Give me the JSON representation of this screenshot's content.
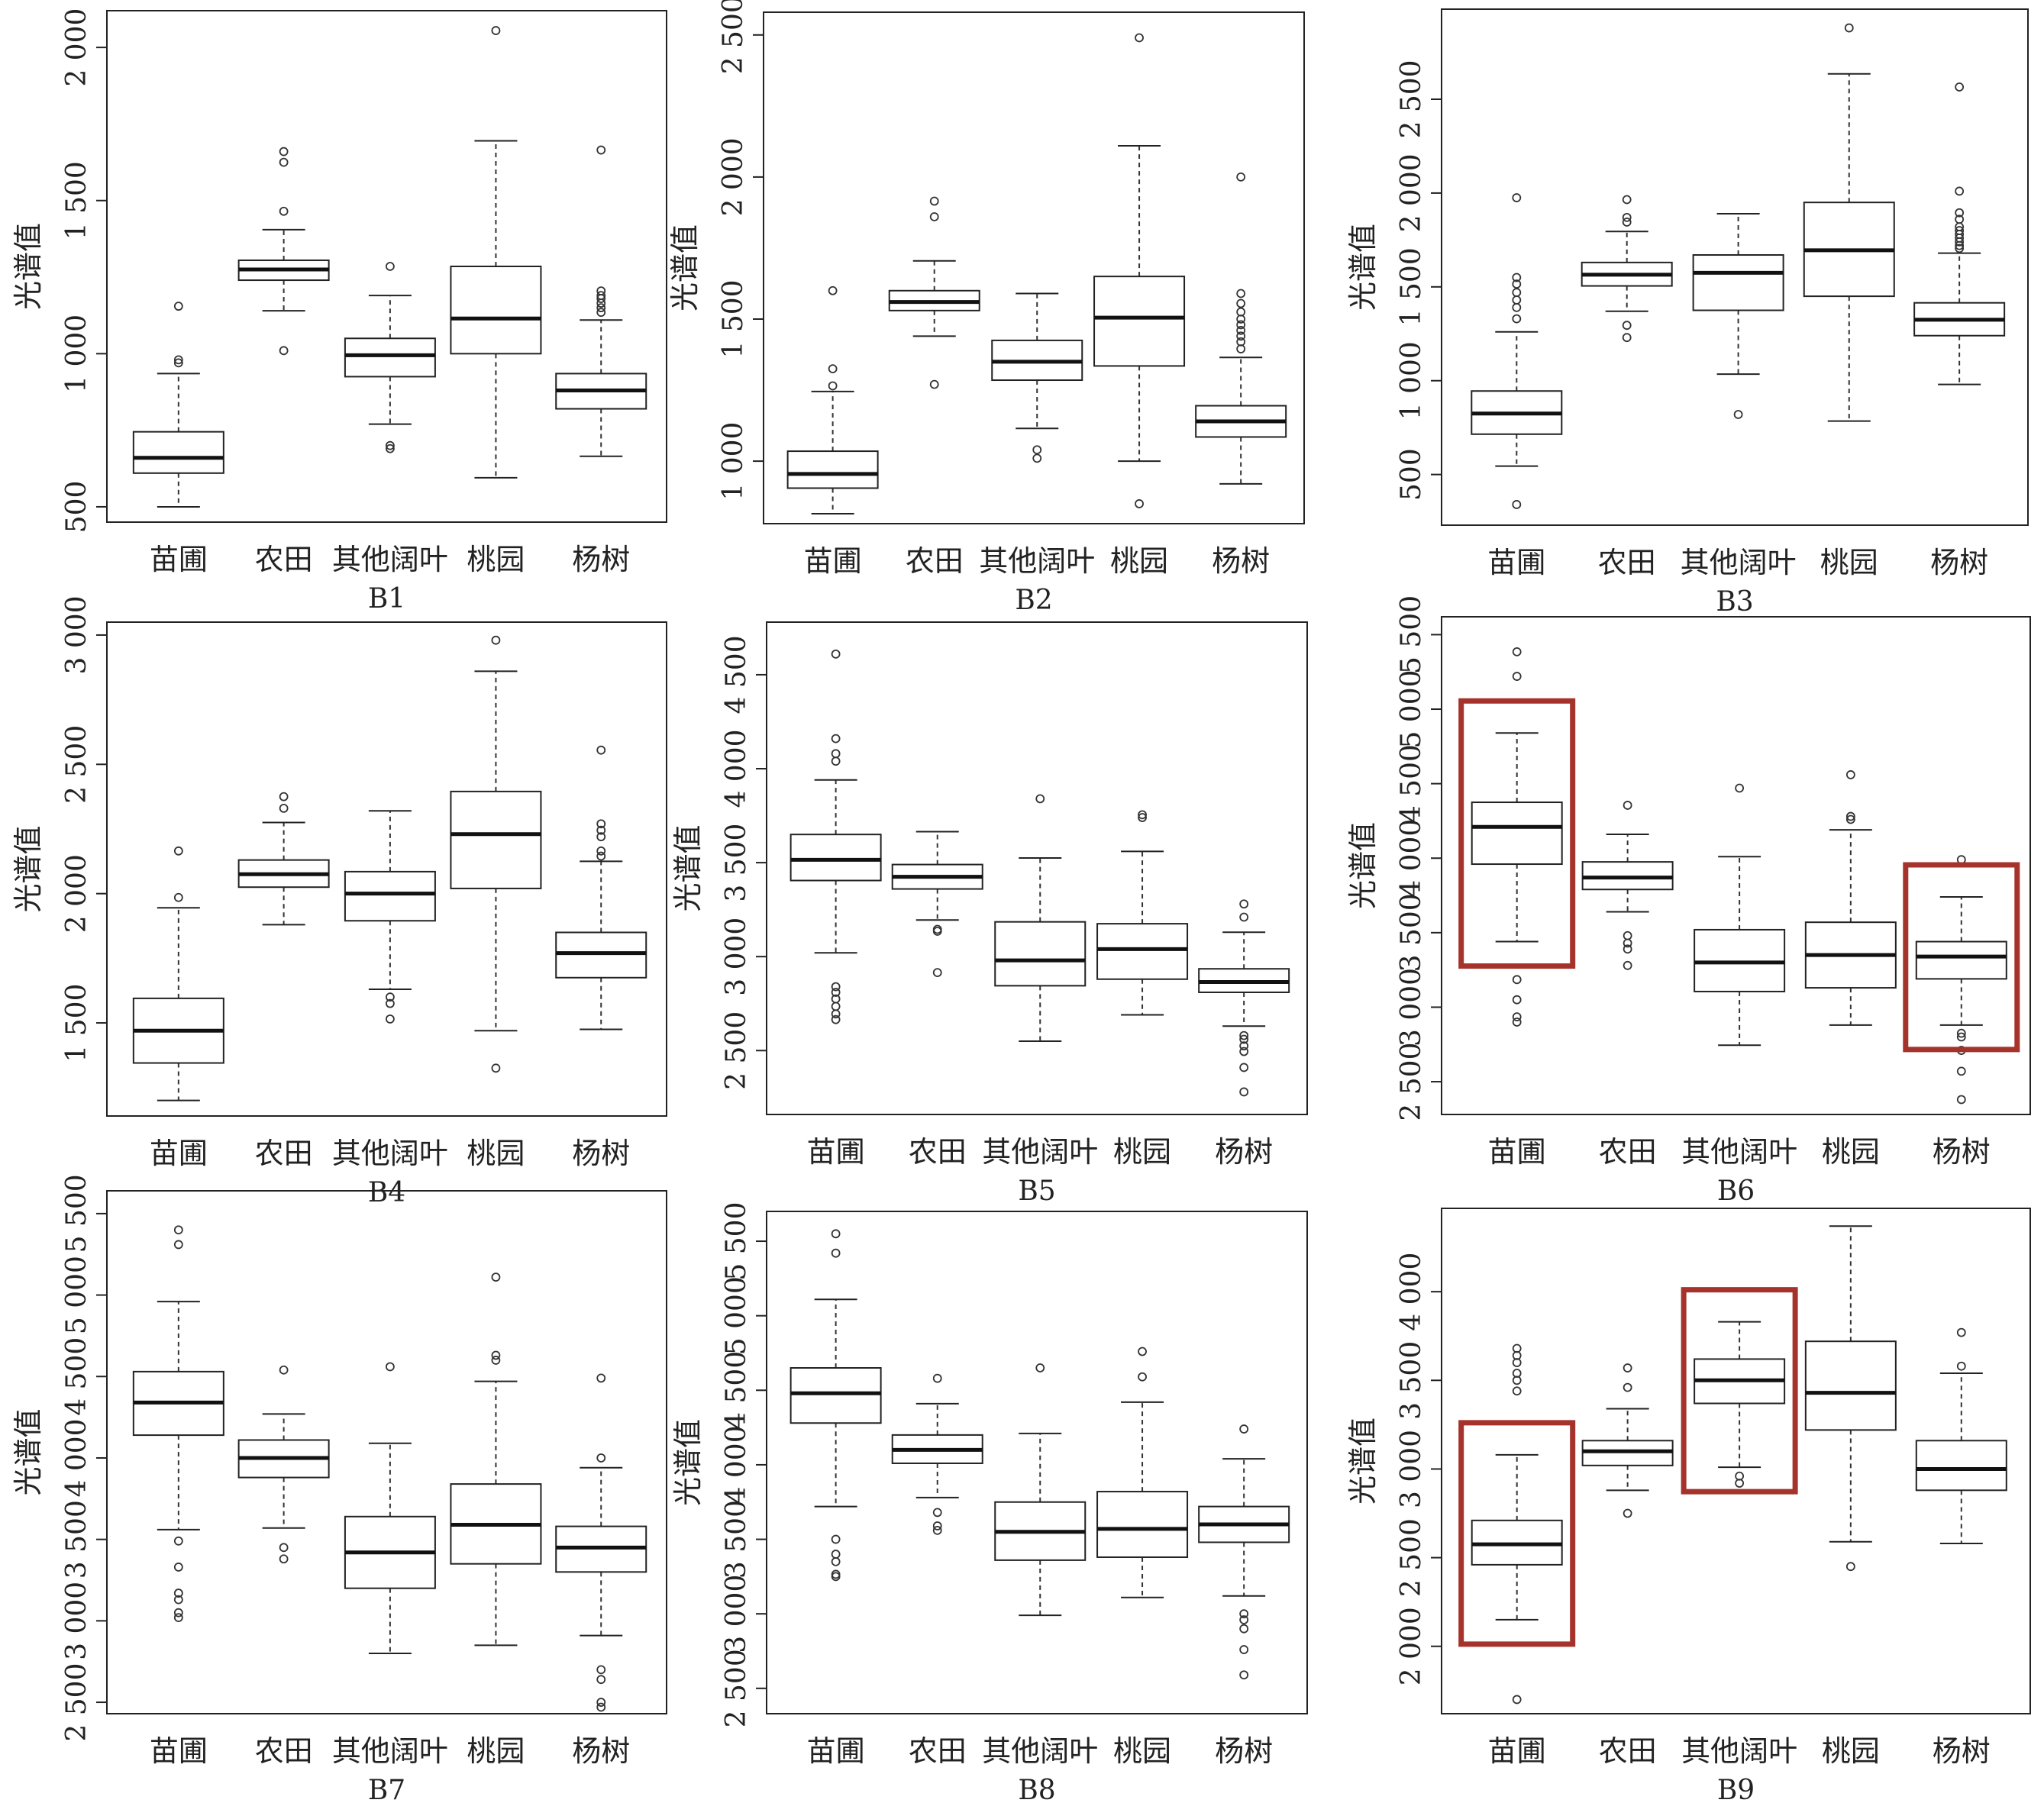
{
  "figure": {
    "highlight_color": "#a5332c",
    "ylabel": "光谱值"
  },
  "chart_data": [
    {
      "type": "box",
      "title": "B1",
      "ylabel": "光谱值",
      "ylim": [
        450,
        2120
      ],
      "yticks": [
        500,
        1000,
        1500,
        2000
      ],
      "ytick_labels": [
        "500",
        "1 000",
        "1 500",
        "2 000"
      ],
      "categories": [
        "苗圃",
        "农田",
        "其他阔叶",
        "桃园",
        "杨树"
      ],
      "boxes": [
        {
          "min": 500,
          "q1": 610,
          "median": 660,
          "q3": 745,
          "max": 935,
          "outliers": [
            970,
            980,
            1155
          ]
        },
        {
          "min": 1140,
          "q1": 1240,
          "median": 1275,
          "q3": 1305,
          "max": 1405,
          "outliers": [
            1010,
            1465,
            1625,
            1660
          ]
        },
        {
          "min": 770,
          "q1": 925,
          "median": 995,
          "q3": 1050,
          "max": 1190,
          "outliers": [
            690,
            700,
            1285
          ]
        },
        {
          "min": 595,
          "q1": 1000,
          "median": 1115,
          "q3": 1285,
          "max": 1695,
          "outliers": [
            2055
          ]
        },
        {
          "min": 665,
          "q1": 820,
          "median": 880,
          "q3": 935,
          "max": 1110,
          "outliers": [
            1135,
            1150,
            1165,
            1180,
            1190,
            1205,
            1665
          ]
        }
      ],
      "highlight": []
    },
    {
      "type": "box",
      "title": "B2",
      "ylabel": "光谱值",
      "ylim": [
        780,
        2580
      ],
      "yticks": [
        1000,
        1500,
        2000,
        2500
      ],
      "ytick_labels": [
        "1 000",
        "1 500",
        "2 000",
        "2 500"
      ],
      "categories": [
        "苗圃",
        "农田",
        "其他阔叶",
        "桃园",
        "杨树"
      ],
      "boxes": [
        {
          "min": 815,
          "q1": 905,
          "median": 955,
          "q3": 1035,
          "max": 1245,
          "outliers": [
            1265,
            1325,
            1600
          ]
        },
        {
          "min": 1440,
          "q1": 1530,
          "median": 1560,
          "q3": 1600,
          "max": 1705,
          "outliers": [
            1270,
            1860,
            1915
          ]
        },
        {
          "min": 1115,
          "q1": 1285,
          "median": 1350,
          "q3": 1425,
          "max": 1590,
          "outliers": [
            1010,
            1040
          ]
        },
        {
          "min": 1000,
          "q1": 1335,
          "median": 1505,
          "q3": 1650,
          "max": 2110,
          "outliers": [
            850,
            2490
          ]
        },
        {
          "min": 920,
          "q1": 1085,
          "median": 1140,
          "q3": 1195,
          "max": 1365,
          "outliers": [
            1395,
            1420,
            1440,
            1460,
            1480,
            1500,
            1525,
            1555,
            1590,
            2000
          ]
        }
      ],
      "highlight": []
    },
    {
      "type": "box",
      "title": "B3",
      "ylabel": "光谱值",
      "ylim": [
        230,
        2980
      ],
      "yticks": [
        500,
        1000,
        1500,
        2000,
        2500
      ],
      "ytick_labels": [
        "500",
        "1 000",
        "1 500",
        "2 000",
        "2 500"
      ],
      "categories": [
        "苗圃",
        "农田",
        "其他阔叶",
        "桃园",
        "杨树"
      ],
      "boxes": [
        {
          "min": 545,
          "q1": 715,
          "median": 825,
          "q3": 945,
          "max": 1260,
          "outliers": [
            340,
            1330,
            1390,
            1430,
            1470,
            1515,
            1550,
            1975
          ]
        },
        {
          "min": 1370,
          "q1": 1505,
          "median": 1565,
          "q3": 1630,
          "max": 1795,
          "outliers": [
            1230,
            1295,
            1845,
            1870,
            1965
          ]
        },
        {
          "min": 1035,
          "q1": 1375,
          "median": 1575,
          "q3": 1670,
          "max": 1890,
          "outliers": [
            820
          ]
        },
        {
          "min": 785,
          "q1": 1450,
          "median": 1695,
          "q3": 1950,
          "max": 2635,
          "outliers": [
            2880
          ]
        },
        {
          "min": 980,
          "q1": 1240,
          "median": 1325,
          "q3": 1415,
          "max": 1680,
          "outliers": [
            1705,
            1720,
            1740,
            1760,
            1780,
            1800,
            1820,
            1860,
            1895,
            2010,
            2565
          ]
        }
      ],
      "highlight": []
    },
    {
      "type": "box",
      "title": "B4",
      "ylabel": "光谱值",
      "ylim": [
        1140,
        3050
      ],
      "yticks": [
        1500,
        2000,
        2500,
        3000
      ],
      "ytick_labels": [
        "1 500",
        "2 000",
        "2 500",
        "3 000"
      ],
      "categories": [
        "苗圃",
        "农田",
        "其他阔叶",
        "桃园",
        "杨树"
      ],
      "boxes": [
        {
          "min": 1200,
          "q1": 1345,
          "median": 1470,
          "q3": 1595,
          "max": 1945,
          "outliers": [
            1985,
            2165
          ]
        },
        {
          "min": 1880,
          "q1": 2025,
          "median": 2075,
          "q3": 2130,
          "max": 2275,
          "outliers": [
            2330,
            2375
          ]
        },
        {
          "min": 1630,
          "q1": 1895,
          "median": 2000,
          "q3": 2085,
          "max": 2320,
          "outliers": [
            1515,
            1575,
            1600
          ]
        },
        {
          "min": 1470,
          "q1": 2020,
          "median": 2230,
          "q3": 2395,
          "max": 2860,
          "outliers": [
            1325,
            2980
          ]
        },
        {
          "min": 1475,
          "q1": 1675,
          "median": 1770,
          "q3": 1850,
          "max": 2125,
          "outliers": [
            2145,
            2165,
            2220,
            2245,
            2270,
            2555
          ]
        }
      ],
      "highlight": []
    },
    {
      "type": "box",
      "title": "B5",
      "ylabel": "光谱值",
      "ylim": [
        2160,
        4780
      ],
      "yticks": [
        2500,
        3000,
        3500,
        4000,
        4500
      ],
      "ytick_labels": [
        "2 500",
        "3 000",
        "3 500",
        "4 000",
        "4 500"
      ],
      "categories": [
        "苗圃",
        "农田",
        "其他阔叶",
        "桃园",
        "杨树"
      ],
      "boxes": [
        {
          "min": 3020,
          "q1": 3405,
          "median": 3515,
          "q3": 3650,
          "max": 3940,
          "outliers": [
            2665,
            2695,
            2735,
            2775,
            2810,
            2840,
            4040,
            4080,
            4160,
            4610
          ]
        },
        {
          "min": 3195,
          "q1": 3360,
          "median": 3425,
          "q3": 3490,
          "max": 3665,
          "outliers": [
            2915,
            3135,
            3145
          ]
        },
        {
          "min": 2550,
          "q1": 2845,
          "median": 2980,
          "q3": 3185,
          "max": 3525,
          "outliers": [
            3840
          ]
        },
        {
          "min": 2690,
          "q1": 2880,
          "median": 3040,
          "q3": 3175,
          "max": 3560,
          "outliers": [
            3740,
            3755
          ]
        },
        {
          "min": 2630,
          "q1": 2810,
          "median": 2865,
          "q3": 2935,
          "max": 3130,
          "outliers": [
            2280,
            2410,
            2495,
            2525,
            2560,
            2580,
            3210,
            3280
          ]
        }
      ],
      "highlight": []
    },
    {
      "type": "box",
      "title": "B6",
      "ylabel": "光谱值",
      "ylim": [
        2280,
        5620
      ],
      "yticks": [
        2500,
        3000,
        3500,
        4000,
        4500,
        5000,
        5500
      ],
      "ytick_labels": [
        "2 500",
        "3 000",
        "3 500",
        "4 000",
        "4 500",
        "5 000",
        "5 500"
      ],
      "categories": [
        "苗圃",
        "农田",
        "其他阔叶",
        "桃园",
        "杨树"
      ],
      "boxes": [
        {
          "min": 3440,
          "q1": 3960,
          "median": 4210,
          "q3": 4375,
          "max": 4840,
          "outliers": [
            2900,
            2935,
            3050,
            3185,
            5220,
            5385
          ]
        },
        {
          "min": 3640,
          "q1": 3790,
          "median": 3870,
          "q3": 3975,
          "max": 4160,
          "outliers": [
            3280,
            3390,
            3430,
            3480,
            4355
          ]
        },
        {
          "min": 2745,
          "q1": 3105,
          "median": 3300,
          "q3": 3520,
          "max": 4010,
          "outliers": [
            4470
          ]
        },
        {
          "min": 2880,
          "q1": 3130,
          "median": 3350,
          "q3": 3570,
          "max": 4190,
          "outliers": [
            4260,
            4280,
            4560
          ]
        },
        {
          "min": 2880,
          "q1": 3190,
          "median": 3340,
          "q3": 3440,
          "max": 3740,
          "outliers": [
            2380,
            2570,
            2710,
            2800,
            2825,
            3990
          ]
        }
      ],
      "highlight": [
        0,
        4
      ]
    },
    {
      "type": "box",
      "title": "B7",
      "ylabel": "光谱值",
      "ylim": [
        2430,
        5640
      ],
      "yticks": [
        2500,
        3000,
        3500,
        4000,
        4500,
        5000,
        5500
      ],
      "ytick_labels": [
        "2 500",
        "3 000",
        "3 500",
        "4 000",
        "4 500",
        "5 000",
        "5 500"
      ],
      "categories": [
        "苗圃",
        "农田",
        "其他阔叶",
        "桃园",
        "杨树"
      ],
      "boxes": [
        {
          "min": 3560,
          "q1": 4140,
          "median": 4340,
          "q3": 4530,
          "max": 4960,
          "outliers": [
            3020,
            3050,
            3130,
            3170,
            3330,
            3490,
            5310,
            5400
          ]
        },
        {
          "min": 3570,
          "q1": 3880,
          "median": 4000,
          "q3": 4110,
          "max": 4270,
          "outliers": [
            3380,
            3450,
            4540
          ]
        },
        {
          "min": 2800,
          "q1": 3200,
          "median": 3420,
          "q3": 3640,
          "max": 4090,
          "outliers": [
            4560
          ]
        },
        {
          "min": 2850,
          "q1": 3350,
          "median": 3590,
          "q3": 3840,
          "max": 4470,
          "outliers": [
            4600,
            4630,
            5110
          ]
        },
        {
          "min": 2910,
          "q1": 3300,
          "median": 3450,
          "q3": 3580,
          "max": 3940,
          "outliers": [
            2470,
            2500,
            2640,
            2700,
            4000,
            4490
          ]
        }
      ],
      "highlight": []
    },
    {
      "type": "box",
      "title": "B8",
      "ylabel": "光谱值",
      "ylim": [
        2330,
        5700
      ],
      "yticks": [
        2500,
        3000,
        3500,
        4000,
        4500,
        5000,
        5500
      ],
      "ytick_labels": [
        "2 500",
        "3 000",
        "3 500",
        "4 000",
        "4 500",
        "5 000",
        "5 500"
      ],
      "categories": [
        "苗圃",
        "农田",
        "其他阔叶",
        "桃园",
        "杨树"
      ],
      "boxes": [
        {
          "min": 3720,
          "q1": 4280,
          "median": 4480,
          "q3": 4650,
          "max": 5110,
          "outliers": [
            3250,
            3265,
            3350,
            3400,
            3500,
            5420,
            5550
          ]
        },
        {
          "min": 3780,
          "q1": 4010,
          "median": 4100,
          "q3": 4200,
          "max": 4410,
          "outliers": [
            3560,
            3590,
            3680,
            4580
          ]
        },
        {
          "min": 2990,
          "q1": 3360,
          "median": 3550,
          "q3": 3750,
          "max": 4210,
          "outliers": [
            4650
          ]
        },
        {
          "min": 3110,
          "q1": 3380,
          "median": 3570,
          "q3": 3820,
          "max": 4420,
          "outliers": [
            4590,
            4760
          ]
        },
        {
          "min": 3120,
          "q1": 3480,
          "median": 3600,
          "q3": 3720,
          "max": 4040,
          "outliers": [
            2590,
            2760,
            2900,
            2960,
            3000,
            4240
          ]
        }
      ],
      "highlight": []
    },
    {
      "type": "box",
      "title": "B9",
      "ylabel": "光谱值",
      "ylim": [
        1620,
        4470
      ],
      "yticks": [
        2000,
        2500,
        3000,
        3500,
        4000
      ],
      "ytick_labels": [
        "2 000",
        "2 500",
        "3 000",
        "3 500",
        "4 000"
      ],
      "categories": [
        "苗圃",
        "农田",
        "其他阔叶",
        "桃园",
        "杨树"
      ],
      "boxes": [
        {
          "min": 2150,
          "q1": 2460,
          "median": 2575,
          "q3": 2710,
          "max": 3080,
          "outliers": [
            1700,
            3440,
            3500,
            3540,
            3600,
            3640,
            3680
          ]
        },
        {
          "min": 2880,
          "q1": 3020,
          "median": 3100,
          "q3": 3160,
          "max": 3340,
          "outliers": [
            2750,
            3460,
            3570
          ]
        },
        {
          "min": 3010,
          "q1": 3370,
          "median": 3500,
          "q3": 3620,
          "max": 3830,
          "outliers": [
            2920,
            2960
          ]
        },
        {
          "min": 2590,
          "q1": 3220,
          "median": 3430,
          "q3": 3720,
          "max": 4370,
          "outliers": [
            2450
          ]
        },
        {
          "min": 2580,
          "q1": 2880,
          "median": 3000,
          "q3": 3160,
          "max": 3540,
          "outliers": [
            3580,
            3770
          ]
        }
      ],
      "highlight": [
        0,
        2
      ]
    }
  ]
}
